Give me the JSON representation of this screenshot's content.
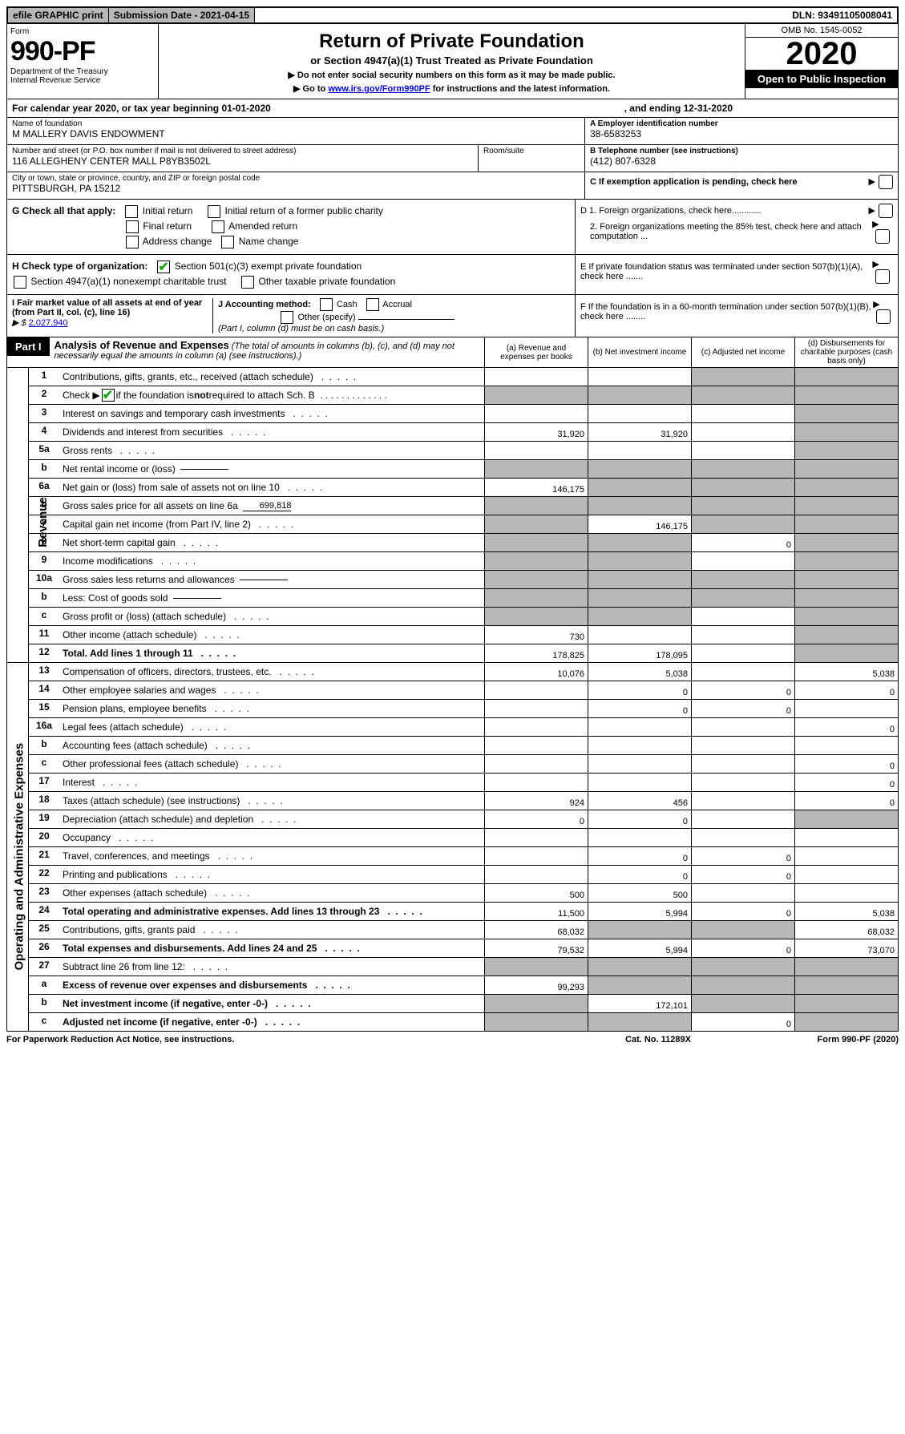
{
  "topbar": {
    "efile": "efile GRAPHIC print",
    "submission": "Submission Date - 2021-04-15",
    "dln": "DLN: 93491105008041"
  },
  "header": {
    "form_label": "Form",
    "form_number": "990-PF",
    "dept1": "Department of the Treasury",
    "dept2": "Internal Revenue Service",
    "title": "Return of Private Foundation",
    "subtitle": "or Section 4947(a)(1) Trust Treated as Private Foundation",
    "instr1": "▶ Do not enter social security numbers on this form as it may be made public.",
    "instr2_prefix": "▶ Go to ",
    "instr2_link": "www.irs.gov/Form990PF",
    "instr2_suffix": " for instructions and the latest information.",
    "omb": "OMB No. 1545-0052",
    "year": "2020",
    "open": "Open to Public Inspection"
  },
  "calyear": {
    "text": "For calendar year 2020, or tax year beginning 01-01-2020",
    "ending": ", and ending 12-31-2020"
  },
  "entity": {
    "name_label": "Name of foundation",
    "name": "M MALLERY DAVIS ENDOWMENT",
    "addr_label": "Number and street (or P.O. box number if mail is not delivered to street address)",
    "addr": "116 ALLEGHENY CENTER MALL P8YB3502L",
    "room_label": "Room/suite",
    "city_label": "City or town, state or province, country, and ZIP or foreign postal code",
    "city": "PITTSBURGH, PA  15212",
    "ein_label": "A Employer identification number",
    "ein": "38-6583253",
    "phone_label": "B Telephone number (see instructions)",
    "phone": "(412) 807-6328",
    "c_label": "C If exemption application is pending, check here"
  },
  "g": {
    "label": "G Check all that apply:",
    "initial": "Initial return",
    "initial_former": "Initial return of a former public charity",
    "final": "Final return",
    "amended": "Amended return",
    "addr_change": "Address change",
    "name_change": "Name change"
  },
  "h": {
    "label": "H Check type of organization:",
    "501c3": "Section 501(c)(3) exempt private foundation",
    "4947": "Section 4947(a)(1) nonexempt charitable trust",
    "other_taxable": "Other taxable private foundation"
  },
  "i": {
    "label": "I Fair market value of all assets at end of year (from Part II, col. (c), line 16)",
    "prefix": "▶ $",
    "value": "2,027,940"
  },
  "j": {
    "label": "J Accounting method:",
    "cash": "Cash",
    "accrual": "Accrual",
    "other": "Other (specify)",
    "note": "(Part I, column (d) must be on cash basis.)"
  },
  "d_section": {
    "d1": "D 1. Foreign organizations, check here............",
    "d2": "2. Foreign organizations meeting the 85% test, check here and attach computation ...",
    "e": "E  If private foundation status was terminated under section 507(b)(1)(A), check here .......",
    "f": "F  If the foundation is in a 60-month termination under section 507(b)(1)(B), check here ........"
  },
  "part1": {
    "tab": "Part I",
    "title": "Analysis of Revenue and Expenses",
    "subtitle": "(The total of amounts in columns (b), (c), and (d) may not necessarily equal the amounts in column (a) (see instructions).)",
    "col_a": "(a)   Revenue and expenses per books",
    "col_b": "(b)  Net investment income",
    "col_c": "(c)  Adjusted net income",
    "col_d": "(d)  Disbursements for charitable purposes (cash basis only)"
  },
  "side_labels": {
    "revenue": "Revenue",
    "expenses": "Operating and Administrative Expenses"
  },
  "rows": [
    {
      "n": "1",
      "d": "Contributions, gifts, grants, etc., received (attach schedule)",
      "a": "",
      "b": "",
      "c": "s",
      "dcol": "s"
    },
    {
      "n": "2",
      "d": "Check ▶ ☑ if the foundation is not required to attach Sch. B",
      "a": "s",
      "b": "s",
      "c": "s",
      "dcol": "s",
      "special": "check"
    },
    {
      "n": "3",
      "d": "Interest on savings and temporary cash investments",
      "a": "",
      "b": "",
      "c": "",
      "dcol": "s"
    },
    {
      "n": "4",
      "d": "Dividends and interest from securities",
      "a": "31,920",
      "b": "31,920",
      "c": "",
      "dcol": "s"
    },
    {
      "n": "5a",
      "d": "Gross rents",
      "a": "",
      "b": "",
      "c": "",
      "dcol": "s"
    },
    {
      "n": "b",
      "d": "Net rental income or (loss)",
      "a": "s",
      "b": "s",
      "c": "s",
      "dcol": "s",
      "inline": true
    },
    {
      "n": "6a",
      "d": "Net gain or (loss) from sale of assets not on line 10",
      "a": "146,175",
      "b": "s",
      "c": "s",
      "dcol": "s"
    },
    {
      "n": "b",
      "d": "Gross sales price for all assets on line 6a",
      "a": "s",
      "b": "s",
      "c": "s",
      "dcol": "s",
      "inline": true,
      "inlineval": "699,818"
    },
    {
      "n": "7",
      "d": "Capital gain net income (from Part IV, line 2)",
      "a": "s",
      "b": "146,175",
      "c": "s",
      "dcol": "s"
    },
    {
      "n": "8",
      "d": "Net short-term capital gain",
      "a": "s",
      "b": "s",
      "c": "0",
      "dcol": "s"
    },
    {
      "n": "9",
      "d": "Income modifications",
      "a": "s",
      "b": "s",
      "c": "",
      "dcol": "s"
    },
    {
      "n": "10a",
      "d": "Gross sales less returns and allowances",
      "a": "s",
      "b": "s",
      "c": "s",
      "dcol": "s",
      "inline": true
    },
    {
      "n": "b",
      "d": "Less: Cost of goods sold",
      "a": "s",
      "b": "s",
      "c": "s",
      "dcol": "s",
      "inline": true
    },
    {
      "n": "c",
      "d": "Gross profit or (loss) (attach schedule)",
      "a": "s",
      "b": "s",
      "c": "",
      "dcol": "s"
    },
    {
      "n": "11",
      "d": "Other income (attach schedule)",
      "a": "730",
      "b": "",
      "c": "",
      "dcol": "s"
    },
    {
      "n": "12",
      "d": "Total. Add lines 1 through 11",
      "a": "178,825",
      "b": "178,095",
      "c": "",
      "dcol": "s",
      "bold": true
    }
  ],
  "exp_rows": [
    {
      "n": "13",
      "d": "Compensation of officers, directors, trustees, etc.",
      "a": "10,076",
      "b": "5,038",
      "c": "",
      "dcol": "5,038"
    },
    {
      "n": "14",
      "d": "Other employee salaries and wages",
      "a": "",
      "b": "0",
      "c": "0",
      "dcol": "0"
    },
    {
      "n": "15",
      "d": "Pension plans, employee benefits",
      "a": "",
      "b": "0",
      "c": "0",
      "dcol": ""
    },
    {
      "n": "16a",
      "d": "Legal fees (attach schedule)",
      "a": "",
      "b": "",
      "c": "",
      "dcol": "0"
    },
    {
      "n": "b",
      "d": "Accounting fees (attach schedule)",
      "a": "",
      "b": "",
      "c": "",
      "dcol": ""
    },
    {
      "n": "c",
      "d": "Other professional fees (attach schedule)",
      "a": "",
      "b": "",
      "c": "",
      "dcol": "0"
    },
    {
      "n": "17",
      "d": "Interest",
      "a": "",
      "b": "",
      "c": "",
      "dcol": "0"
    },
    {
      "n": "18",
      "d": "Taxes (attach schedule) (see instructions)",
      "a": "924",
      "b": "456",
      "c": "",
      "dcol": "0"
    },
    {
      "n": "19",
      "d": "Depreciation (attach schedule) and depletion",
      "a": "0",
      "b": "0",
      "c": "",
      "dcol": "s"
    },
    {
      "n": "20",
      "d": "Occupancy",
      "a": "",
      "b": "",
      "c": "",
      "dcol": ""
    },
    {
      "n": "21",
      "d": "Travel, conferences, and meetings",
      "a": "",
      "b": "0",
      "c": "0",
      "dcol": ""
    },
    {
      "n": "22",
      "d": "Printing and publications",
      "a": "",
      "b": "0",
      "c": "0",
      "dcol": ""
    },
    {
      "n": "23",
      "d": "Other expenses (attach schedule)",
      "a": "500",
      "b": "500",
      "c": "",
      "dcol": ""
    },
    {
      "n": "24",
      "d": "Total operating and administrative expenses. Add lines 13 through 23",
      "a": "11,500",
      "b": "5,994",
      "c": "0",
      "dcol": "5,038",
      "bold": true
    },
    {
      "n": "25",
      "d": "Contributions, gifts, grants paid",
      "a": "68,032",
      "b": "s",
      "c": "s",
      "dcol": "68,032"
    },
    {
      "n": "26",
      "d": "Total expenses and disbursements. Add lines 24 and 25",
      "a": "79,532",
      "b": "5,994",
      "c": "0",
      "dcol": "73,070",
      "bold": true
    },
    {
      "n": "27",
      "d": "Subtract line 26 from line 12:",
      "a": "s",
      "b": "s",
      "c": "s",
      "dcol": "s"
    },
    {
      "n": "a",
      "d": "Excess of revenue over expenses and disbursements",
      "a": "99,293",
      "b": "s",
      "c": "s",
      "dcol": "s",
      "bold": true
    },
    {
      "n": "b",
      "d": "Net investment income (if negative, enter -0-)",
      "a": "s",
      "b": "172,101",
      "c": "s",
      "dcol": "s",
      "bold": true
    },
    {
      "n": "c",
      "d": "Adjusted net income (if negative, enter -0-)",
      "a": "s",
      "b": "s",
      "c": "0",
      "dcol": "s",
      "bold": true
    }
  ],
  "footer": {
    "left": "For Paperwork Reduction Act Notice, see instructions.",
    "center": "Cat. No. 11289X",
    "right": "Form 990-PF (2020)"
  }
}
